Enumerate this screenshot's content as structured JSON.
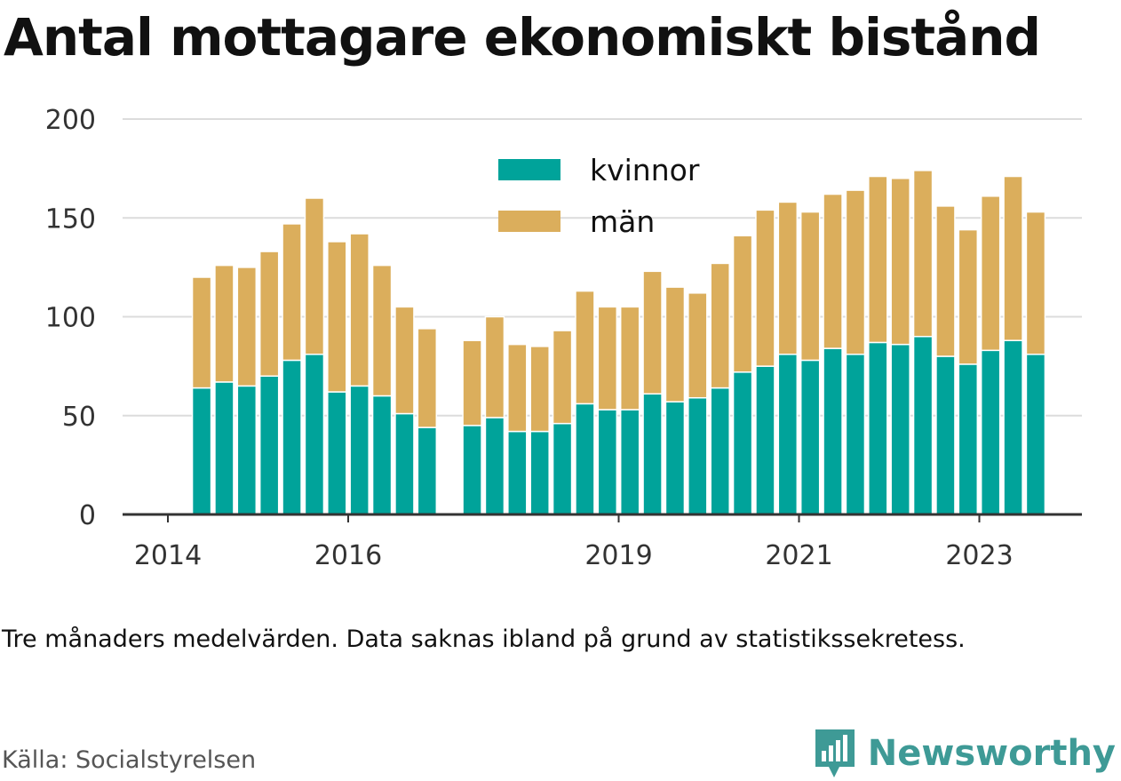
{
  "title": "Antal mottagare ekonomiskt bistånd",
  "note": "Tre månaders medelvärden. Data saknas ibland på grund av statistikssekretess.",
  "source": "Källa: Socialstyrelsen",
  "brand": {
    "name": "Newsworthy",
    "icon": "bar-chart-speech-icon",
    "color": "#3e9a96"
  },
  "chart_data": {
    "type": "bar",
    "stacked": true,
    "ylim": [
      0,
      200
    ],
    "yticks": [
      0,
      50,
      100,
      150,
      200
    ],
    "xticks": [
      "2014",
      "2016",
      "2019",
      "2021",
      "2023"
    ],
    "grid": true,
    "legend_position": "top-center",
    "colors": {
      "kvinnor": "#00a39a",
      "män": "#dbae5c"
    },
    "series": [
      {
        "name": "kvinnor",
        "color": "#00a39a",
        "values": [
          64,
          67,
          65,
          70,
          78,
          81,
          62,
          65,
          60,
          51,
          44,
          45,
          49,
          42,
          42,
          46,
          56,
          53,
          53,
          61,
          57,
          59,
          64,
          72,
          75,
          81,
          78,
          84,
          81,
          87,
          86,
          90,
          80,
          76,
          83,
          88,
          81
        ]
      },
      {
        "name": "män",
        "color": "#dbae5c",
        "values": [
          56,
          59,
          60,
          63,
          69,
          79,
          76,
          77,
          66,
          54,
          50,
          43,
          51,
          44,
          43,
          47,
          57,
          52,
          52,
          62,
          58,
          53,
          63,
          69,
          79,
          77,
          75,
          78,
          83,
          84,
          84,
          84,
          76,
          68,
          78,
          83,
          72
        ]
      }
    ],
    "x": [
      "2014-Q2",
      "2014-Q3",
      "2014-Q4",
      "2015-Q1",
      "2015-Q2",
      "2015-Q3",
      "2015-Q4",
      "2016-Q1",
      "2016-Q2",
      "2016-Q3",
      "2016-Q4",
      "2017-Q2",
      "2017-Q3",
      "2017-Q4",
      "2018-Q1",
      "2018-Q2",
      "2018-Q3",
      "2018-Q4",
      "2019-Q1",
      "2019-Q2",
      "2019-Q3",
      "2019-Q4",
      "2020-Q1",
      "2020-Q2",
      "2020-Q3",
      "2020-Q4",
      "2021-Q1",
      "2021-Q2",
      "2021-Q3",
      "2021-Q4",
      "2022-Q1",
      "2022-Q2",
      "2022-Q3",
      "2022-Q4",
      "2023-Q1",
      "2023-Q2",
      "2023-Q3"
    ]
  }
}
